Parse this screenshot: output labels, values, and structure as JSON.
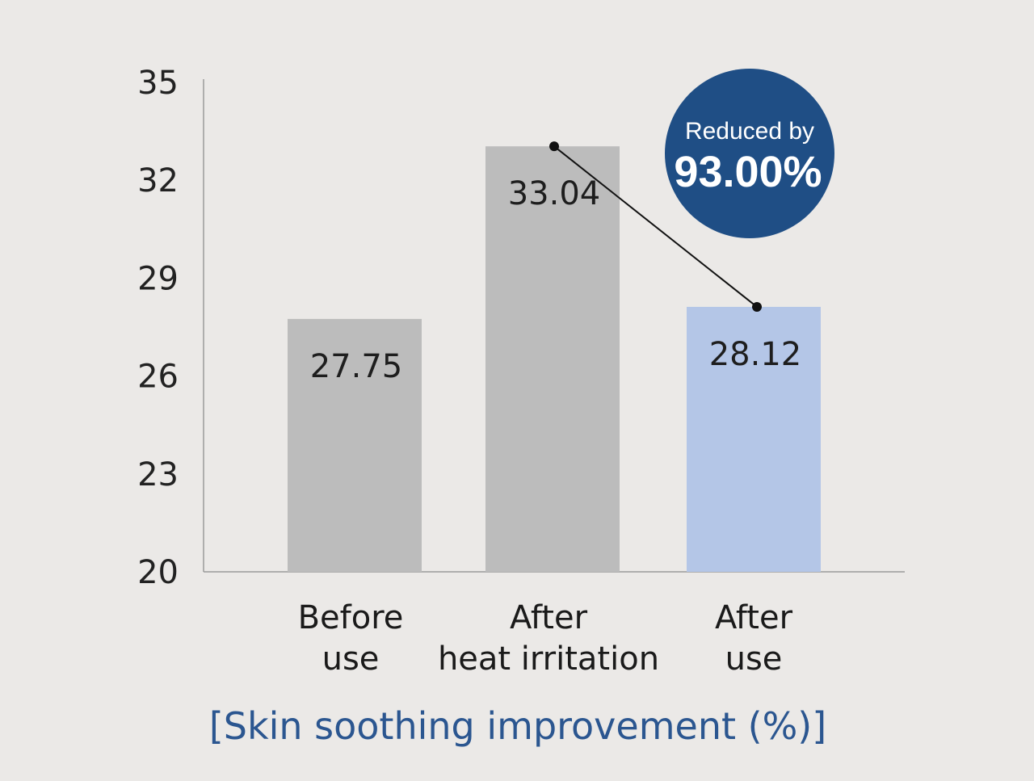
{
  "chart_data": {
    "type": "bar",
    "title": "[Skin soothing improvement (%)]",
    "categories": [
      [
        "Before",
        "use"
      ],
      [
        "After",
        "heat irritation"
      ],
      [
        "After",
        "use"
      ]
    ],
    "values": [
      27.75,
      33.04,
      28.12
    ],
    "value_labels": [
      "27.75",
      "33.04",
      "28.12"
    ],
    "bar_colors": [
      "#bcbcbc",
      "#bcbcbc",
      "#b4c6e7"
    ],
    "ylim": [
      20,
      35
    ],
    "yticks": [
      "20",
      "23",
      "26",
      "29",
      "32",
      "35"
    ],
    "xlabel": "",
    "ylabel": "",
    "grid": false,
    "connector": {
      "from": 1,
      "to": 2
    },
    "badge": {
      "line1": "Reduced by",
      "line2": "93.00%",
      "color": "#1f4e85"
    },
    "title_color": "#2b5690",
    "background": "#ebe9e7"
  }
}
